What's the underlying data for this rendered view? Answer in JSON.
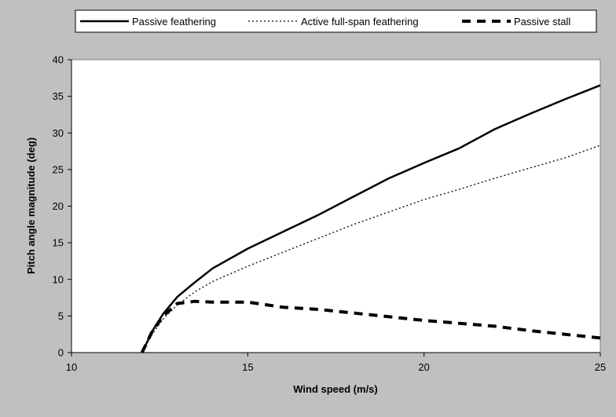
{
  "chart_data": {
    "type": "line",
    "title": "",
    "xlabel": "Wind speed (m/s)",
    "ylabel": "Pitch angle magnitude (deg)",
    "xlim": [
      10,
      25
    ],
    "ylim": [
      0,
      40
    ],
    "x_ticks": [
      10,
      15,
      20,
      25
    ],
    "y_ticks": [
      0,
      5,
      10,
      15,
      20,
      25,
      30,
      35,
      40
    ],
    "grid": false,
    "legend_position": "top",
    "series": [
      {
        "name": "Passive feathering",
        "style": "solid",
        "color": "#000000",
        "x": [
          12.0,
          12.3,
          12.6,
          13.0,
          13.5,
          14.0,
          15.0,
          16.0,
          17.0,
          18.0,
          19.0,
          20.0,
          21.0,
          22.0,
          23.0,
          24.0,
          25.0
        ],
        "y": [
          0.0,
          3.0,
          5.3,
          7.6,
          9.6,
          11.5,
          14.2,
          16.5,
          18.8,
          21.3,
          23.8,
          25.9,
          27.9,
          30.5,
          32.6,
          34.6,
          36.5
        ]
      },
      {
        "name": "Active full-span feathering",
        "style": "dotted",
        "color": "#000000",
        "x": [
          12.0,
          12.3,
          12.6,
          13.0,
          13.5,
          14.0,
          15.0,
          16.0,
          17.0,
          18.0,
          19.0,
          20.0,
          21.0,
          22.0,
          23.0,
          24.0,
          25.0
        ],
        "y": [
          0.0,
          2.6,
          4.6,
          6.5,
          8.3,
          9.7,
          11.8,
          13.7,
          15.6,
          17.5,
          19.2,
          20.9,
          22.3,
          23.8,
          25.2,
          26.6,
          28.3
        ]
      },
      {
        "name": "Passive stall",
        "style": "dashed",
        "color": "#000000",
        "x": [
          12.0,
          12.3,
          12.6,
          13.0,
          13.5,
          14.0,
          15.0,
          16.0,
          17.0,
          18.0,
          19.0,
          20.0,
          21.0,
          22.0,
          23.0,
          24.0,
          25.0
        ],
        "y": [
          0.0,
          3.0,
          5.0,
          6.7,
          7.0,
          6.9,
          6.9,
          6.2,
          5.9,
          5.4,
          4.9,
          4.4,
          4.0,
          3.6,
          3.0,
          2.5,
          2.0
        ]
      }
    ]
  }
}
